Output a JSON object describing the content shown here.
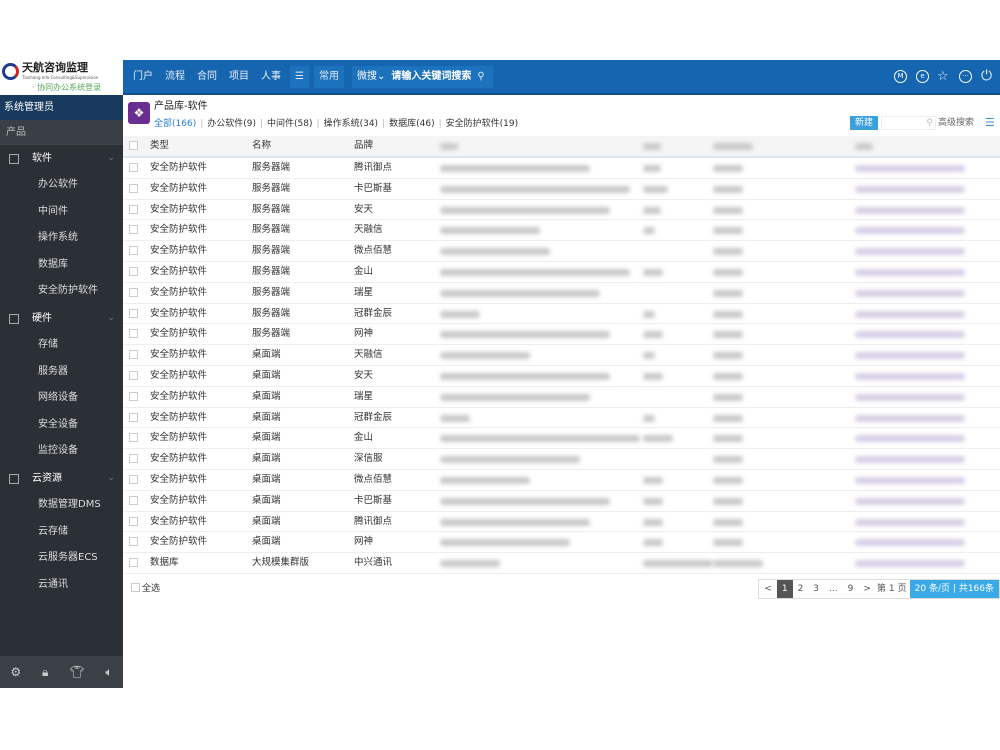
{
  "logo": {
    "name": "天航咨询监理",
    "sub": "Tianhang Info Consulting&Supervision",
    "tag": "· 协同办公系统登录"
  },
  "topnav": {
    "items": [
      "门户",
      "流程",
      "合同",
      "项目",
      "人事"
    ],
    "menu_icon": "list-icon",
    "common": "常用",
    "search_scope": "微搜",
    "search_placeholder": "请输入关键词搜索",
    "right_icons": [
      "m-icon",
      "e-icon",
      "star-icon",
      "more-icon",
      "power-icon"
    ]
  },
  "sidebar": {
    "user": "系统管理员",
    "section": "产品",
    "groups": [
      {
        "label": "软件",
        "items": [
          "办公软件",
          "中间件",
          "操作系统",
          "数据库",
          "安全防护软件"
        ]
      },
      {
        "label": "硬件",
        "items": [
          "存储",
          "服务器",
          "网络设备",
          "安全设备",
          "监控设备"
        ]
      },
      {
        "label": "云资源",
        "items": [
          "数据管理DMS",
          "云存储",
          "云服务器ECS",
          "云通讯"
        ]
      }
    ],
    "footer_icons": [
      "settings-icon",
      "lock-icon",
      "shirt-icon",
      "speaker-icon"
    ]
  },
  "page": {
    "title": "产品库-软件",
    "tabs": [
      "全部(166)",
      "办公软件(9)",
      "中间件(58)",
      "操作系统(34)",
      "数据库(46)",
      "安全防护软件(19)"
    ],
    "new_label": "新建",
    "advanced_search": "高级搜索"
  },
  "table": {
    "headers": [
      "类型",
      "名称",
      "品牌"
    ],
    "rows": [
      [
        "安全防护软件",
        "服务器端",
        "腾讯御点"
      ],
      [
        "安全防护软件",
        "服务器端",
        "卡巴斯基"
      ],
      [
        "安全防护软件",
        "服务器端",
        "安天"
      ],
      [
        "安全防护软件",
        "服务器端",
        "天融信"
      ],
      [
        "安全防护软件",
        "服务器端",
        "微点佰慧"
      ],
      [
        "安全防护软件",
        "服务器端",
        "金山"
      ],
      [
        "安全防护软件",
        "服务器端",
        "瑞星"
      ],
      [
        "安全防护软件",
        "服务器端",
        "冠群金辰"
      ],
      [
        "安全防护软件",
        "服务器端",
        "网神"
      ],
      [
        "安全防护软件",
        "桌面端",
        "天融信"
      ],
      [
        "安全防护软件",
        "桌面端",
        "安天"
      ],
      [
        "安全防护软件",
        "桌面端",
        "瑞星"
      ],
      [
        "安全防护软件",
        "桌面端",
        "冠群金辰"
      ],
      [
        "安全防护软件",
        "桌面端",
        "金山"
      ],
      [
        "安全防护软件",
        "桌面端",
        "深信服"
      ],
      [
        "安全防护软件",
        "桌面端",
        "微点佰慧"
      ],
      [
        "安全防护软件",
        "桌面端",
        "卡巴斯基"
      ],
      [
        "安全防护软件",
        "桌面端",
        "腾讯御点"
      ],
      [
        "安全防护软件",
        "桌面端",
        "网神"
      ],
      [
        "数据库",
        "大规模集群版",
        "中兴通讯"
      ]
    ]
  },
  "footer": {
    "select_all": "全选",
    "pages": [
      "<",
      "1",
      "2",
      "3",
      "...",
      "9",
      ">"
    ],
    "goto_prefix": "第",
    "goto_page": "1",
    "goto_suffix": "页",
    "per_page": "20",
    "per_page_unit": "条/页",
    "total": "| 共166条"
  },
  "colors": {
    "header": "#1565b0",
    "sidebar": "#2b2f36",
    "accent": "#3aa9e8"
  }
}
